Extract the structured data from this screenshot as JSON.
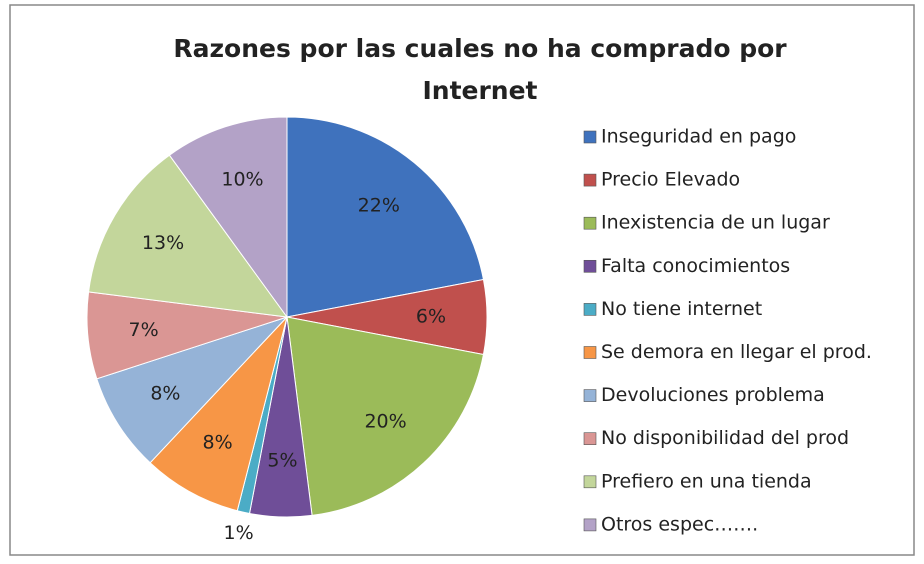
{
  "chart_data": {
    "type": "pie",
    "title": "Razones por las cuales no ha comprado por Internet",
    "categories": [
      "Inseguridad en pago",
      "Precio Elevado",
      "Inexistencia de un lugar",
      "Falta conocimientos",
      "No tiene internet",
      "Se demora en llegar el prod.",
      "Devoluciones problema",
      "No disponibilidad del prod",
      "Prefiero en una tienda",
      "Otros espec……."
    ],
    "values": [
      22,
      6,
      20,
      5,
      1,
      8,
      8,
      7,
      13,
      10
    ],
    "value_labels": [
      "22%",
      "6%",
      "20%",
      "5%",
      "1%",
      "8%",
      "8%",
      "7%",
      "13%",
      "10%"
    ],
    "colors": [
      "#3f72bd",
      "#c0504d",
      "#9bbb59",
      "#6f4e98",
      "#4bacc6",
      "#f79646",
      "#95b3d7",
      "#da9694",
      "#c3d69b",
      "#b3a2c7"
    ],
    "legend": "right"
  }
}
